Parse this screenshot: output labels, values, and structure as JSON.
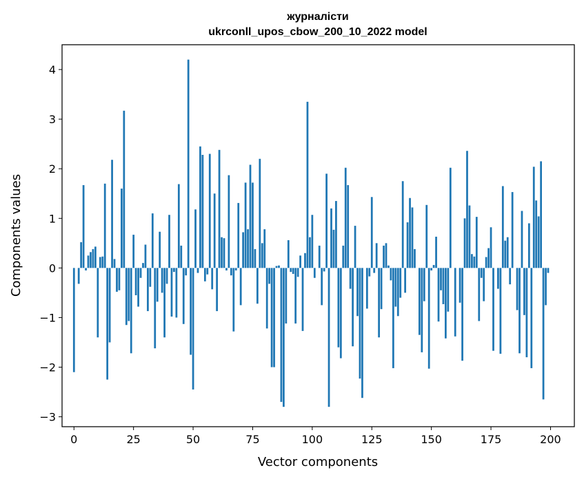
{
  "chart_data": {
    "type": "bar",
    "title": "журналісти",
    "subtitle": "ukrconll_upos_cbow_200_10_2022 model",
    "xlabel": "Vector components",
    "ylabel": "Components values",
    "xlim": [
      -5,
      210
    ],
    "ylim": [
      -3.2,
      4.5
    ],
    "xticks": [
      0,
      25,
      50,
      75,
      100,
      125,
      150,
      175,
      200
    ],
    "yticks": [
      -3,
      -2,
      -1,
      0,
      1,
      2,
      3,
      4
    ],
    "xtick_labels": [
      "0",
      "25",
      "50",
      "75",
      "100",
      "125",
      "150",
      "175",
      "200"
    ],
    "ytick_labels": [
      "−3",
      "−2",
      "−1",
      "0",
      "1",
      "2",
      "3",
      "4"
    ],
    "bar_color": "#1f77b4",
    "grid": false,
    "x": [
      0,
      1,
      2,
      3,
      4,
      5,
      6,
      7,
      8,
      9,
      10,
      11,
      12,
      13,
      14,
      15,
      16,
      17,
      18,
      19,
      20,
      21,
      22,
      23,
      24,
      25,
      26,
      27,
      28,
      29,
      30,
      31,
      32,
      33,
      34,
      35,
      36,
      37,
      38,
      39,
      40,
      41,
      42,
      43,
      44,
      45,
      46,
      47,
      48,
      49,
      50,
      51,
      52,
      53,
      54,
      55,
      56,
      57,
      58,
      59,
      60,
      61,
      62,
      63,
      64,
      65,
      66,
      67,
      68,
      69,
      70,
      71,
      72,
      73,
      74,
      75,
      76,
      77,
      78,
      79,
      80,
      81,
      82,
      83,
      84,
      85,
      86,
      87,
      88,
      89,
      90,
      91,
      92,
      93,
      94,
      95,
      96,
      97,
      98,
      99,
      100,
      101,
      102,
      103,
      104,
      105,
      106,
      107,
      108,
      109,
      110,
      111,
      112,
      113,
      114,
      115,
      116,
      117,
      118,
      119,
      120,
      121,
      122,
      123,
      124,
      125,
      126,
      127,
      128,
      129,
      130,
      131,
      132,
      133,
      134,
      135,
      136,
      137,
      138,
      139,
      140,
      141,
      142,
      143,
      144,
      145,
      146,
      147,
      148,
      149,
      150,
      151,
      152,
      153,
      154,
      155,
      156,
      157,
      158,
      159,
      160,
      161,
      162,
      163,
      164,
      165,
      166,
      167,
      168,
      169,
      170,
      171,
      172,
      173,
      174,
      175,
      176,
      177,
      178,
      179,
      180,
      181,
      182,
      183,
      184,
      185,
      186,
      187,
      188,
      189,
      190,
      191,
      192,
      193,
      194,
      195,
      196,
      197,
      198,
      199
    ],
    "values": [
      -2.1,
      0.0,
      -0.32,
      0.52,
      1.67,
      -0.05,
      0.25,
      0.32,
      0.38,
      0.43,
      -1.4,
      0.22,
      0.23,
      1.7,
      -2.25,
      -1.5,
      2.18,
      0.18,
      -0.48,
      -0.45,
      1.6,
      3.17,
      -1.15,
      -1.07,
      -1.72,
      0.67,
      -0.55,
      -0.78,
      -0.2,
      0.1,
      0.47,
      -0.87,
      -0.38,
      1.1,
      -1.62,
      -0.68,
      0.73,
      -0.5,
      -1.4,
      -0.32,
      1.07,
      -0.98,
      -0.08,
      -1.0,
      1.69,
      0.45,
      -1.13,
      -0.15,
      4.2,
      -1.75,
      -2.45,
      1.18,
      -0.1,
      2.45,
      2.28,
      -0.27,
      -0.13,
      2.3,
      -0.43,
      1.5,
      -0.87,
      2.38,
      0.62,
      0.6,
      -0.05,
      1.87,
      -0.15,
      -1.28,
      -0.05,
      1.31,
      -0.75,
      0.72,
      1.72,
      0.78,
      2.08,
      1.72,
      0.38,
      -0.72,
      2.2,
      0.5,
      0.78,
      -1.22,
      -0.32,
      -2.0,
      -2.0,
      0.04,
      0.05,
      -2.7,
      -2.8,
      -1.12,
      0.56,
      -0.08,
      -0.12,
      -1.12,
      -0.18,
      0.25,
      -1.27,
      0.3,
      3.35,
      0.62,
      1.07,
      -0.2,
      0.0,
      0.45,
      -0.75,
      -0.07,
      1.9,
      -2.8,
      1.2,
      0.77,
      1.35,
      -1.6,
      -1.82,
      0.45,
      2.02,
      1.67,
      -0.42,
      -1.58,
      0.85,
      -0.97,
      -2.23,
      -2.62,
      0.0,
      -0.82,
      -0.17,
      1.43,
      -0.1,
      0.5,
      -1.4,
      -0.83,
      0.45,
      0.5,
      0.05,
      -0.25,
      -2.02,
      -0.78,
      -0.97,
      -0.6,
      1.75,
      -0.5,
      0.92,
      1.41,
      1.22,
      0.38,
      0.0,
      -1.35,
      -1.7,
      -0.67,
      1.27,
      -2.03,
      -0.05,
      0.06,
      0.63,
      -1.08,
      -0.45,
      -0.73,
      -1.42,
      -0.88,
      2.02,
      0.0,
      -1.38,
      0.0,
      -0.7,
      -1.87,
      1.0,
      2.36,
      1.26,
      0.28,
      0.23,
      1.03,
      -1.07,
      -0.2,
      -0.67,
      0.22,
      0.4,
      0.82,
      -1.67,
      0.0,
      -0.42,
      -1.73,
      1.65,
      0.55,
      0.62,
      -0.33,
      1.53,
      0.0,
      -0.85,
      -1.72,
      1.15,
      -0.95,
      -1.8,
      0.9,
      -2.02,
      2.04,
      1.36,
      1.04,
      2.15,
      -2.65,
      -0.75,
      -0.1
    ]
  }
}
